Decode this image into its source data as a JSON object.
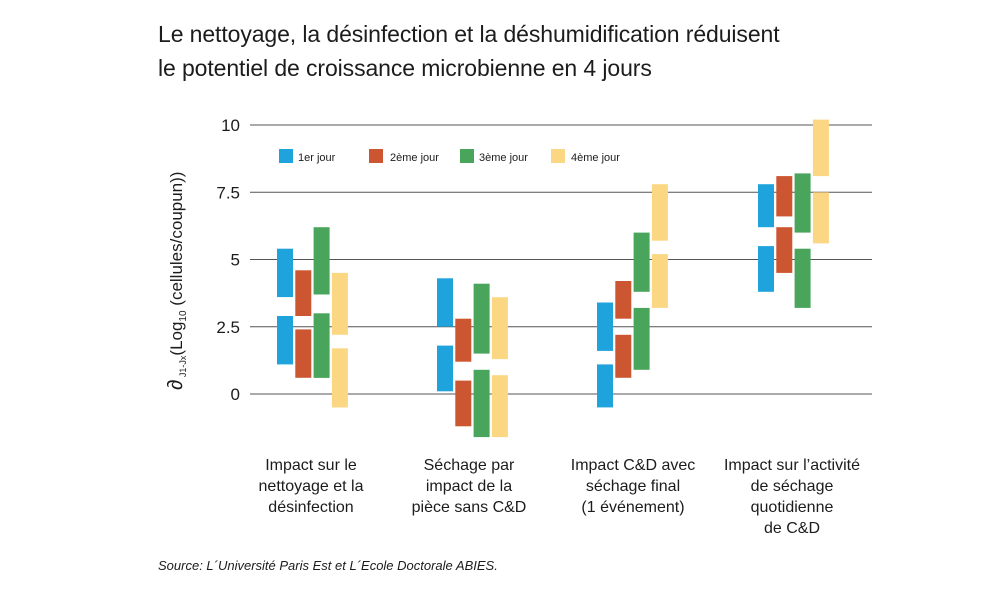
{
  "title_lines": [
    "Le nettoyage, la désinfection et la déshumidification réduisent",
    "le potentiel de croissance microbienne en 4 jours"
  ],
  "source": "Source: L´Université Paris Est et L´Ecole Doctorale ABIES.",
  "colors": {
    "1er jour": "#1fa3dc",
    "2ème jour": "#cc5632",
    "3ème jour": "#4aa55c",
    "4ème jour": "#fbd783",
    "grid": "#555555"
  },
  "chart_data": {
    "type": "range-bar",
    "ylabel": {
      "main": "∂",
      "sub1": "J1-Jx",
      "mid": "(Log",
      "sub2": "10",
      "end": " (cellules/coupun))"
    },
    "yticks": [
      0,
      2.5,
      5,
      7.5,
      10
    ],
    "ytick_labels": [
      "0",
      "2.5",
      "5",
      "7.5",
      "10"
    ],
    "ylim": [
      -1.6,
      10.5
    ],
    "legend_position": "top-left",
    "series_names": [
      "1er jour",
      "2ème jour",
      "3ème jour",
      "4ème jour"
    ],
    "categories": [
      "Impact sur le\nnettoyage et la\ndésinfection",
      "Séchage par\nimpact de la\npièce sans C&D",
      "Impact C&D avec\nséchage final\n(1 événement)",
      "Impact sur l’activité\nde séchage\nquotidienne\nde C&D"
    ],
    "groups": [
      {
        "1er jour": [
          [
            1.1,
            2.9
          ],
          [
            3.6,
            5.4
          ]
        ],
        "2ème jour": [
          [
            0.6,
            2.4
          ],
          [
            2.9,
            4.6
          ]
        ],
        "3ème jour": [
          [
            0.6,
            3.0
          ],
          [
            3.7,
            6.2
          ]
        ],
        "4ème jour": [
          [
            -0.5,
            1.7
          ],
          [
            2.2,
            4.5
          ]
        ]
      },
      {
        "1er jour": [
          [
            0.1,
            1.8
          ],
          [
            2.5,
            4.3
          ]
        ],
        "2ème jour": [
          [
            -1.2,
            0.5
          ],
          [
            1.2,
            2.8
          ]
        ],
        "3ème jour": [
          [
            -1.6,
            0.9
          ],
          [
            1.5,
            4.1
          ]
        ],
        "4ème jour": [
          [
            -1.6,
            0.7
          ],
          [
            1.3,
            3.6
          ]
        ]
      },
      {
        "1er jour": [
          [
            -0.5,
            1.1
          ],
          [
            1.6,
            3.4
          ]
        ],
        "2ème jour": [
          [
            0.6,
            2.2
          ],
          [
            2.8,
            4.2
          ]
        ],
        "3ème jour": [
          [
            0.9,
            3.2
          ],
          [
            3.8,
            6.0
          ]
        ],
        "4ème jour": [
          [
            3.2,
            5.2
          ],
          [
            5.7,
            7.8
          ]
        ]
      },
      {
        "1er jour": [
          [
            3.8,
            5.5
          ],
          [
            6.2,
            7.8
          ]
        ],
        "2ème jour": [
          [
            4.5,
            6.2
          ],
          [
            6.6,
            8.1
          ]
        ],
        "3ème jour": [
          [
            3.2,
            5.4
          ],
          [
            6.0,
            8.2
          ]
        ],
        "4ème jour": [
          [
            5.6,
            7.5
          ],
          [
            8.1,
            10.2
          ]
        ]
      }
    ]
  }
}
